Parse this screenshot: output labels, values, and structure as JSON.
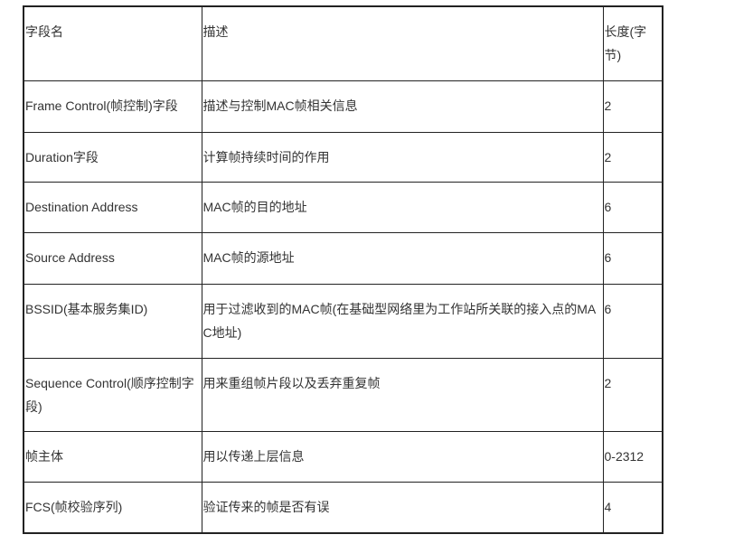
{
  "table": {
    "header": [
      "字段名",
      "描述",
      "长度(字节)"
    ],
    "rows": [
      [
        "Frame Control(帧控制)字段",
        "描述与控制MAC帧相关信息",
        "2"
      ],
      [
        "Duration字段",
        "计算帧持续时间的作用",
        "2"
      ],
      [
        "Destination Address",
        "MAC帧的目的地址",
        "6"
      ],
      [
        "Source Address",
        "MAC帧的源地址",
        "6"
      ],
      [
        "BSSID(基本服务集ID)",
        "用于过滤收到的MAC帧(在基础型网络里为工作站所关联的接入点的MAC地址)",
        "6"
      ],
      [
        "Sequence Control(顺序控制字段)",
        "用来重组帧片段以及丢弃重复帧",
        "2"
      ],
      [
        "帧主体",
        "用以传递上层信息",
        "0-2312"
      ],
      [
        "FCS(帧校验序列)",
        "验证传来的帧是否有误",
        "4"
      ]
    ]
  }
}
